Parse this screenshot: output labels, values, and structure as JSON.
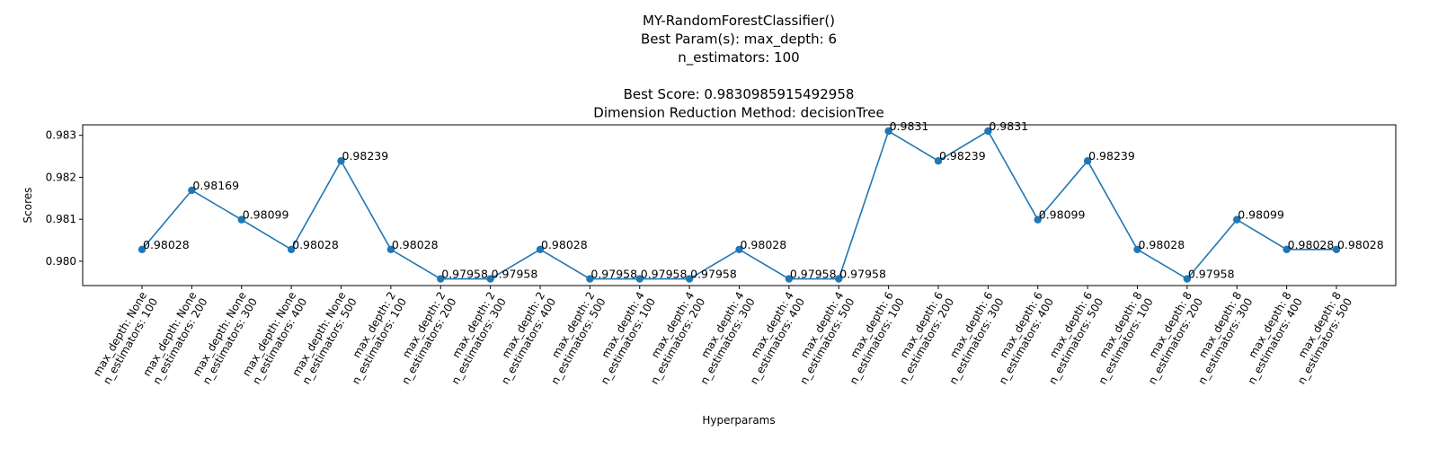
{
  "chart_data": {
    "type": "line",
    "title_lines": [
      "MY-RandomForestClassifier()",
      "Best Param(s): max_depth: 6",
      "n_estimators: 100",
      "",
      "Best Score: 0.9830985915492958",
      "Dimension Reduction Method: decisionTree"
    ],
    "xlabel": "Hyperparams",
    "ylabel": "Scores",
    "ylim": [
      0.97942,
      0.98325
    ],
    "yticks": [
      0.98,
      0.981,
      0.982,
      0.983
    ],
    "ytick_labels": [
      "0.980",
      "0.981",
      "0.982",
      "0.983"
    ],
    "grid": false,
    "series_color": "#1f77b4",
    "categories": [
      [
        "max_depth: None",
        "n_estimators: 100"
      ],
      [
        "max_depth: None",
        "n_estimators: 200"
      ],
      [
        "max_depth: None",
        "n_estimators: 300"
      ],
      [
        "max_depth: None",
        "n_estimators: 400"
      ],
      [
        "max_depth: None",
        "n_estimators: 500"
      ],
      [
        "max_depth: 2",
        "n_estimators: 100"
      ],
      [
        "max_depth: 2",
        "n_estimators: 200"
      ],
      [
        "max_depth: 2",
        "n_estimators: 300"
      ],
      [
        "max_depth: 2",
        "n_estimators: 400"
      ],
      [
        "max_depth: 2",
        "n_estimators: 500"
      ],
      [
        "max_depth: 4",
        "n_estimators: 100"
      ],
      [
        "max_depth: 4",
        "n_estimators: 200"
      ],
      [
        "max_depth: 4",
        "n_estimators: 300"
      ],
      [
        "max_depth: 4",
        "n_estimators: 400"
      ],
      [
        "max_depth: 4",
        "n_estimators: 500"
      ],
      [
        "max_depth: 6",
        "n_estimators: 100"
      ],
      [
        "max_depth: 6",
        "n_estimators: 200"
      ],
      [
        "max_depth: 6",
        "n_estimators: 300"
      ],
      [
        "max_depth: 6",
        "n_estimators: 400"
      ],
      [
        "max_depth: 6",
        "n_estimators: 500"
      ],
      [
        "max_depth: 8",
        "n_estimators: 100"
      ],
      [
        "max_depth: 8",
        "n_estimators: 200"
      ],
      [
        "max_depth: 8",
        "n_estimators: 300"
      ],
      [
        "max_depth: 8",
        "n_estimators: 400"
      ],
      [
        "max_depth: 8",
        "n_estimators: 500"
      ]
    ],
    "values": [
      0.98028,
      0.98169,
      0.98099,
      0.98028,
      0.98239,
      0.98028,
      0.97958,
      0.97958,
      0.98028,
      0.97958,
      0.97958,
      0.97958,
      0.98028,
      0.97958,
      0.97958,
      0.9831,
      0.98239,
      0.9831,
      0.98099,
      0.98239,
      0.98028,
      0.97958,
      0.98099,
      0.98028,
      0.98028
    ],
    "data_labels": [
      "0.98028",
      "0.98169",
      "0.98099",
      "0.98028",
      "0.98239",
      "0.98028",
      "0.97958",
      "0.97958",
      "0.98028",
      "0.97958",
      "0.97958",
      "0.97958",
      "0.98028",
      "0.97958",
      "0.97958",
      "0.9831",
      "0.98239",
      "0.9831",
      "0.98099",
      "0.98239",
      "0.98028",
      "0.97958",
      "0.98099",
      "0.98028",
      "0.98028"
    ]
  }
}
